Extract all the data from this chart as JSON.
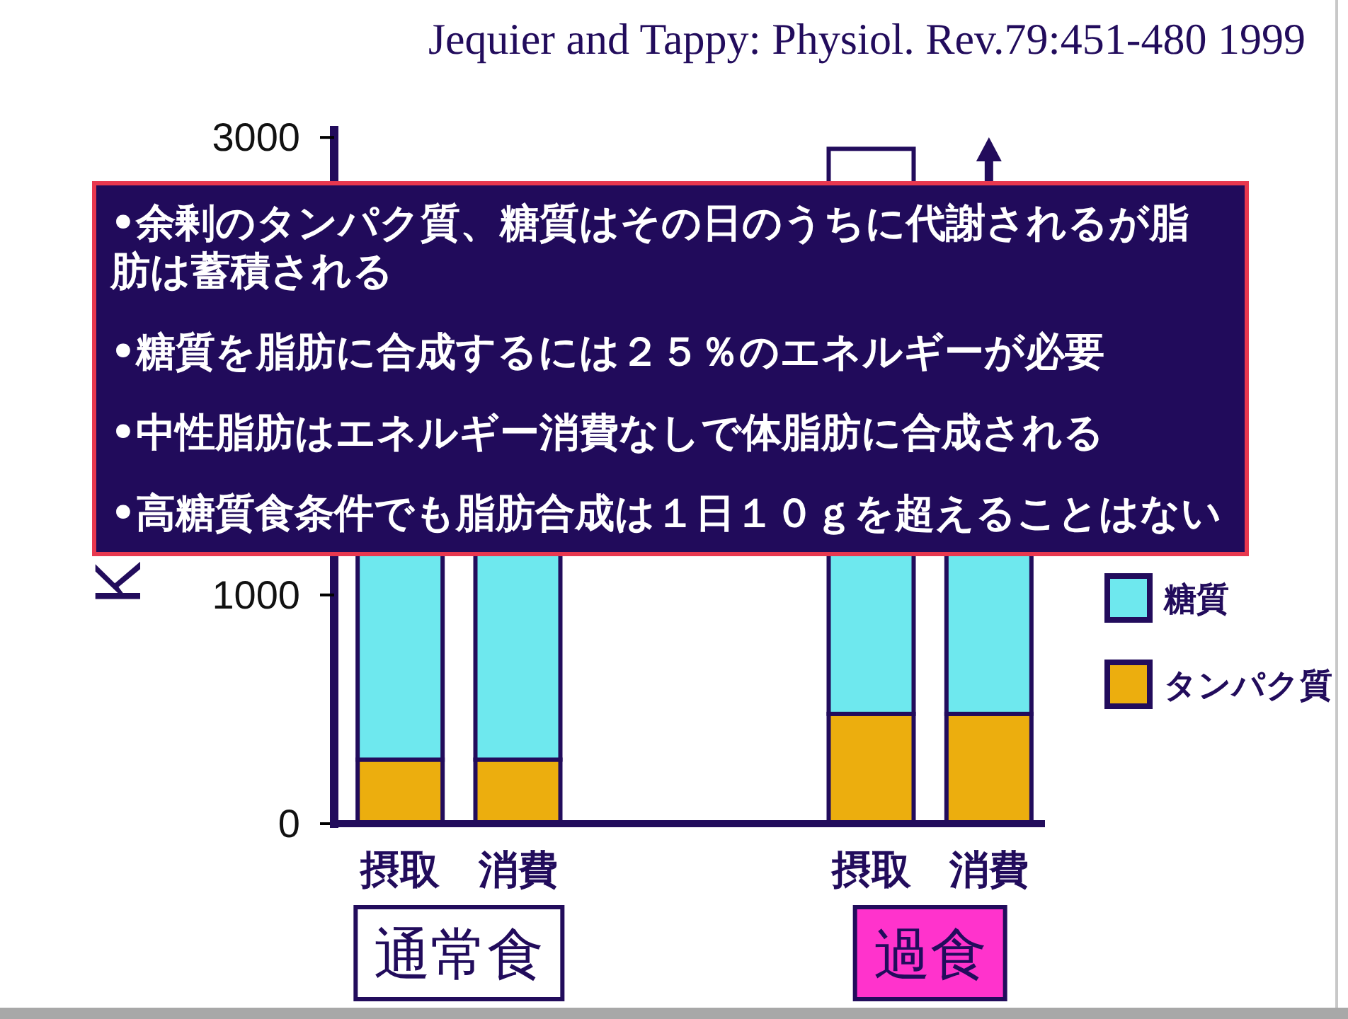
{
  "chart_data": {
    "type": "bar",
    "categories": [
      "摂取",
      "消費",
      null,
      null,
      "摂取",
      "消費"
    ],
    "stacked": true,
    "series": [
      {
        "name": "タンパク質",
        "color": "#ecae0e",
        "values": [
          280,
          280,
          null,
          null,
          480,
          480
        ]
      },
      {
        "name": "糖質",
        "color": "#6ee8ee",
        "values": [
          900,
          900,
          null,
          null,
          700,
          700
        ]
      },
      {
        "color": "#ffffff",
        "values": [
          null,
          null,
          null,
          null,
          1770,
          null
        ]
      }
    ],
    "ylim": [
      0,
      3050
    ],
    "yticks": [
      0,
      1000,
      3000
    ],
    "ylabel": "K",
    "legend": "right",
    "annotations": [
      "Jequier and Tappy: Physiol. Rev.79:451-480 1999",
      "•余剰のタンパク質、糖質はその日のうちに代謝されるが脂肪は蓄積される",
      "•糖質を脂肪に合成するには２５％のエネルギーが必要",
      "•中性脂肪はエネルギー消費なしで体脂肪に合成される",
      "•高糖質食条件でも脂肪合成は１日１０ｇを超えることはない",
      "通常食",
      "過食"
    ]
  }
}
